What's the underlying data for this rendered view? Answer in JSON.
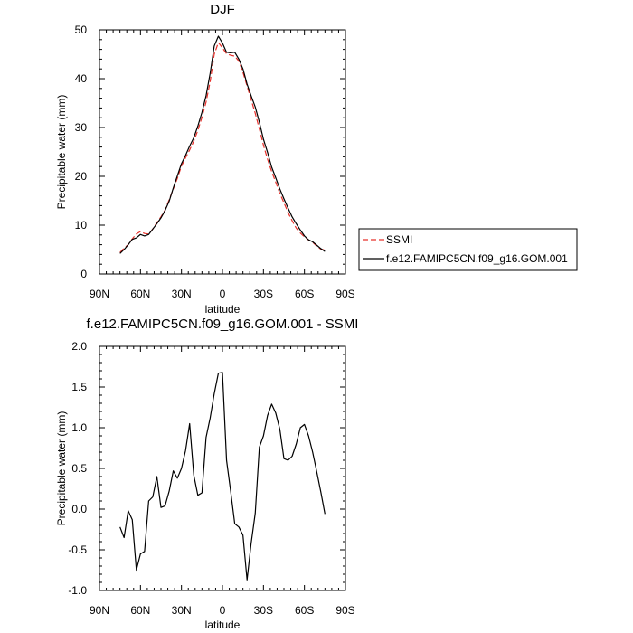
{
  "chart_data": [
    {
      "type": "line",
      "title": "DJF",
      "xlabel": "latitude",
      "ylabel": "Precipitable water (mm)",
      "xlim": [
        90,
        -90
      ],
      "ylim": [
        0,
        50
      ],
      "x_ticks": [
        90,
        60,
        30,
        0,
        -30,
        -60,
        -90
      ],
      "x_tick_labels": [
        "90N",
        "60N",
        "30N",
        "0",
        "30S",
        "60S",
        "90S"
      ],
      "y_ticks": [
        0,
        10,
        20,
        30,
        40,
        50
      ],
      "y_tick_labels": [
        "0",
        "10",
        "20",
        "30",
        "40",
        "50"
      ],
      "legend_position": "right",
      "series": [
        {
          "name": "SSMI",
          "color": "#e8302a",
          "dash": "dashed",
          "x": [
            75,
            72,
            69,
            66,
            63,
            60,
            57,
            54,
            51,
            48,
            45,
            42,
            39,
            36,
            33,
            30,
            27,
            24,
            21,
            18,
            15,
            12,
            9,
            6,
            3,
            0,
            -3,
            -6,
            -9,
            -12,
            -15,
            -18,
            -21,
            -24,
            -27,
            -30,
            -33,
            -36,
            -39,
            -42,
            -45,
            -48,
            -51,
            -54,
            -57,
            -60,
            -63,
            -66,
            -69,
            -72,
            -75
          ],
          "y": [
            4.4,
            5.3,
            6.0,
            7.2,
            8.2,
            8.7,
            8.3,
            8.2,
            9.2,
            10.5,
            11.7,
            13.1,
            15.2,
            17.4,
            19.6,
            22.1,
            23.8,
            25.4,
            27.2,
            29.4,
            32.1,
            35.2,
            39.4,
            45.0,
            47.4,
            46.3,
            45.1,
            44.8,
            44.6,
            43.6,
            41.3,
            38.5,
            35.7,
            32.9,
            29.7,
            26.4,
            23.5,
            21.0,
            18.8,
            16.5,
            14.6,
            12.6,
            10.9,
            9.4,
            8.4,
            7.6,
            7.0,
            6.5,
            5.7,
            5.1,
            4.9
          ]
        },
        {
          "name": "f.e12.FAMIPC5CN.f09_g16.GOM.001",
          "color": "#000000",
          "dash": "solid",
          "x": [
            75,
            72,
            69,
            66,
            63,
            60,
            57,
            54,
            51,
            48,
            45,
            42,
            39,
            36,
            33,
            30,
            27,
            24,
            21,
            18,
            15,
            12,
            9,
            6,
            3,
            0,
            -3,
            -6,
            -9,
            -12,
            -15,
            -18,
            -21,
            -24,
            -27,
            -30,
            -33,
            -36,
            -39,
            -42,
            -45,
            -48,
            -51,
            -54,
            -57,
            -60,
            -63,
            -66,
            -69,
            -72,
            -75
          ],
          "y": [
            4.2,
            5.0,
            6.0,
            7.1,
            7.4,
            8.1,
            7.8,
            8.1,
            9.2,
            10.3,
            11.5,
            13.0,
            14.9,
            17.6,
            20.1,
            22.6,
            24.3,
            26.2,
            27.9,
            30.3,
            33.1,
            36.5,
            41.1,
            46.7,
            48.7,
            47.3,
            45.4,
            45.3,
            45.4,
            44.0,
            42.0,
            38.9,
            36.5,
            34.2,
            31.1,
            27.6,
            24.9,
            21.9,
            19.7,
            17.4,
            15.4,
            13.5,
            11.7,
            10.3,
            9.0,
            7.8,
            7.0,
            6.6,
            5.9,
            5.2,
            4.6
          ]
        }
      ]
    },
    {
      "type": "line",
      "title": "f.e12.FAMIPC5CN.f09_g16.GOM.001 - SSMI",
      "xlabel": "latitude",
      "ylabel": "Precipitable water (mm)",
      "xlim": [
        90,
        -90
      ],
      "ylim": [
        -1.0,
        2.0
      ],
      "x_ticks": [
        90,
        60,
        30,
        0,
        -30,
        -60,
        -90
      ],
      "x_tick_labels": [
        "90N",
        "60N",
        "30N",
        "0",
        "30S",
        "60S",
        "90S"
      ],
      "y_ticks": [
        -1.0,
        -0.5,
        0.0,
        0.5,
        1.0,
        1.5,
        2.0
      ],
      "y_tick_labels": [
        "-1.0",
        "-0.5",
        "0.0",
        "0.5",
        "1.0",
        "1.5",
        "2.0"
      ],
      "series": [
        {
          "color": "#000000",
          "dash": "solid",
          "x": [
            75,
            72,
            69,
            66,
            63,
            60,
            57,
            54,
            51,
            48,
            45,
            42,
            39,
            36,
            33,
            30,
            27,
            24,
            21,
            18,
            15,
            12,
            9,
            6,
            3,
            0,
            -3,
            -6,
            -9,
            -12,
            -15,
            -18,
            -21,
            -24,
            -27,
            -30,
            -33,
            -36,
            -39,
            -42,
            -45,
            -48,
            -51,
            -54,
            -57,
            -60,
            -63,
            -66,
            -69,
            -72,
            -75
          ],
          "y": [
            -0.22,
            -0.35,
            -0.02,
            -0.13,
            -0.75,
            -0.55,
            -0.52,
            0.1,
            0.15,
            0.4,
            0.02,
            0.04,
            0.22,
            0.47,
            0.38,
            0.5,
            0.72,
            1.05,
            0.42,
            0.17,
            0.2,
            0.88,
            1.12,
            1.42,
            1.67,
            1.68,
            0.6,
            0.22,
            -0.18,
            -0.22,
            -0.32,
            -0.87,
            -0.42,
            -0.05,
            0.76,
            0.9,
            1.15,
            1.29,
            1.18,
            0.98,
            0.62,
            0.6,
            0.65,
            0.8,
            1.0,
            1.04,
            0.9,
            0.7,
            0.46,
            0.21,
            -0.06
          ]
        }
      ]
    }
  ]
}
